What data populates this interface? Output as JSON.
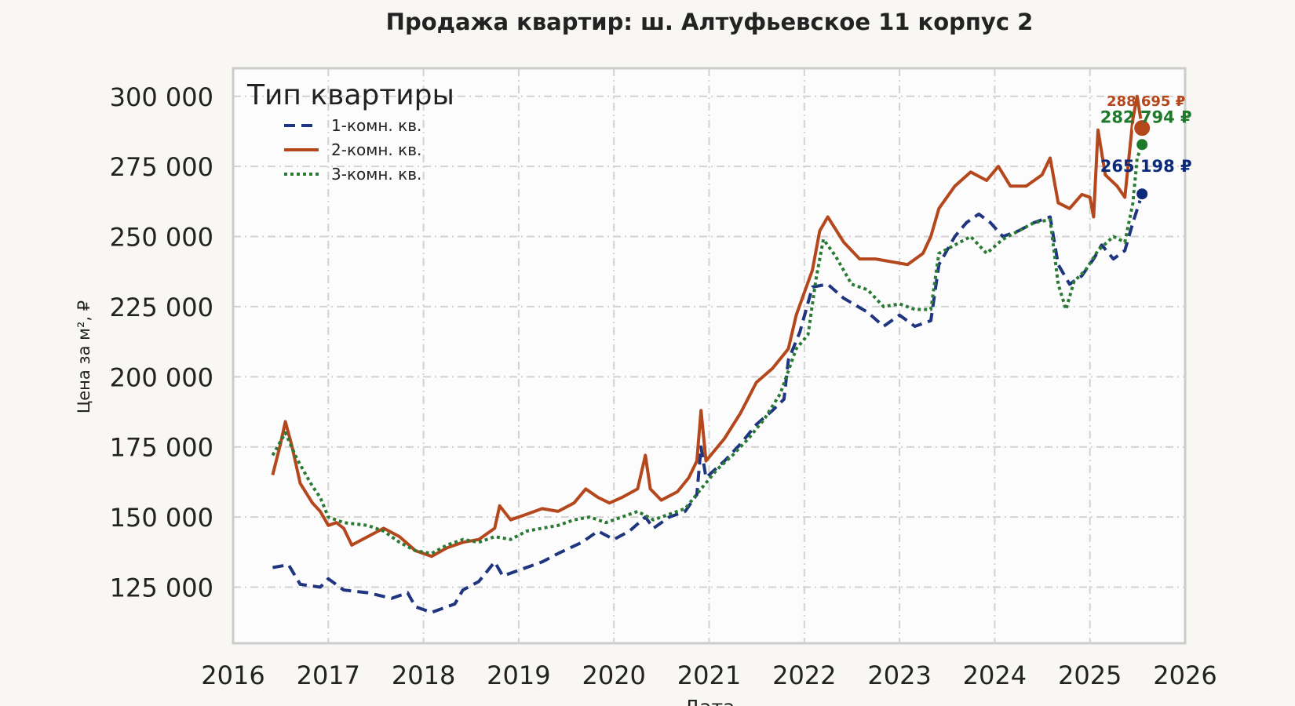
{
  "chart_data": {
    "type": "line",
    "title": "Продажа квартир: ш. Алтуфьевское 11 корпус 2",
    "xlabel": "Дата",
    "ylabel": "Цена за м², ₽",
    "xlim": [
      "2016-01-01",
      "2026-01-01"
    ],
    "ylim": [
      105000,
      310000
    ],
    "x_ticks": [
      "2016",
      "2017",
      "2018",
      "2019",
      "2020",
      "2021",
      "2022",
      "2023",
      "2024",
      "2025",
      "2026"
    ],
    "y_ticks": [
      {
        "value": 125000,
        "label": "125 000"
      },
      {
        "value": 150000,
        "label": "150 000"
      },
      {
        "value": 175000,
        "label": "175 000"
      },
      {
        "value": 200000,
        "label": "200 000"
      },
      {
        "value": 225000,
        "label": "225 000"
      },
      {
        "value": 250000,
        "label": "250 000"
      },
      {
        "value": 275000,
        "label": "275 000"
      },
      {
        "value": 300000,
        "label": "300 000"
      }
    ],
    "grid": true,
    "legend": {
      "title": "Тип квартиры",
      "position": "top-left"
    },
    "series": [
      {
        "name": "1-комн. кв.",
        "color": "#1f3580",
        "dot_color": "#0b2a7a",
        "style": "dashed",
        "last_label": "265 198 ₽",
        "points": [
          [
            "2016-06-01",
            132000
          ],
          [
            "2016-08-01",
            133000
          ],
          [
            "2016-09-15",
            126000
          ],
          [
            "2016-12-01",
            125000
          ],
          [
            "2017-01-01",
            128000
          ],
          [
            "2017-03-01",
            124000
          ],
          [
            "2017-06-01",
            123000
          ],
          [
            "2017-09-01",
            121000
          ],
          [
            "2017-11-01",
            123000
          ],
          [
            "2017-12-01",
            118000
          ],
          [
            "2018-01-01",
            117000
          ],
          [
            "2018-02-01",
            116000
          ],
          [
            "2018-05-01",
            119000
          ],
          [
            "2018-06-01",
            124000
          ],
          [
            "2018-08-01",
            127000
          ],
          [
            "2018-10-01",
            134000
          ],
          [
            "2018-11-01",
            129000
          ],
          [
            "2019-01-01",
            131000
          ],
          [
            "2019-04-01",
            134000
          ],
          [
            "2019-06-01",
            137000
          ],
          [
            "2019-09-01",
            141000
          ],
          [
            "2019-11-01",
            145000
          ],
          [
            "2020-01-01",
            142000
          ],
          [
            "2020-03-01",
            145000
          ],
          [
            "2020-05-01",
            150000
          ],
          [
            "2020-06-01",
            146000
          ],
          [
            "2020-08-01",
            150000
          ],
          [
            "2020-10-01",
            152000
          ],
          [
            "2020-11-15",
            158000
          ],
          [
            "2020-12-01",
            175000
          ],
          [
            "2020-12-20",
            164000
          ],
          [
            "2021-03-01",
            170000
          ],
          [
            "2021-05-01",
            176000
          ],
          [
            "2021-07-01",
            183000
          ],
          [
            "2021-09-01",
            188000
          ],
          [
            "2021-10-15",
            192000
          ],
          [
            "2021-11-01",
            206000
          ],
          [
            "2021-12-15",
            216000
          ],
          [
            "2022-02-01",
            232000
          ],
          [
            "2022-04-01",
            233000
          ],
          [
            "2022-06-01",
            228000
          ],
          [
            "2022-09-01",
            223000
          ],
          [
            "2022-11-01",
            218000
          ],
          [
            "2023-01-01",
            222000
          ],
          [
            "2023-03-01",
            218000
          ],
          [
            "2023-05-01",
            220000
          ],
          [
            "2023-06-01",
            240000
          ],
          [
            "2023-08-01",
            250000
          ],
          [
            "2023-09-15",
            255000
          ],
          [
            "2023-11-01",
            258000
          ],
          [
            "2023-12-15",
            255000
          ],
          [
            "2024-02-01",
            250000
          ],
          [
            "2024-04-01",
            252000
          ],
          [
            "2024-06-01",
            255000
          ],
          [
            "2024-08-01",
            257000
          ],
          [
            "2024-09-01",
            240000
          ],
          [
            "2024-10-15",
            233000
          ],
          [
            "2024-12-01",
            236000
          ],
          [
            "2025-01-15",
            242000
          ],
          [
            "2025-02-15",
            247000
          ],
          [
            "2025-04-01",
            242000
          ],
          [
            "2025-05-15",
            245000
          ],
          [
            "2025-06-15",
            255000
          ],
          [
            "2025-07-20",
            265198
          ]
        ]
      },
      {
        "name": "2-комн. кв.",
        "color": "#b5471d",
        "dot_color": "#b5471d",
        "style": "solid",
        "last_label": "288 695 ₽",
        "points": [
          [
            "2016-06-01",
            165000
          ],
          [
            "2016-07-01",
            176000
          ],
          [
            "2016-07-20",
            184000
          ],
          [
            "2016-08-15",
            175000
          ],
          [
            "2016-09-15",
            162000
          ],
          [
            "2016-11-01",
            155000
          ],
          [
            "2016-12-01",
            152000
          ],
          [
            "2017-01-01",
            147000
          ],
          [
            "2017-02-01",
            148000
          ],
          [
            "2017-03-01",
            146000
          ],
          [
            "2017-04-01",
            140000
          ],
          [
            "2017-06-01",
            143000
          ],
          [
            "2017-08-01",
            146000
          ],
          [
            "2017-10-01",
            143000
          ],
          [
            "2017-12-01",
            138000
          ],
          [
            "2018-02-01",
            136000
          ],
          [
            "2018-04-01",
            139000
          ],
          [
            "2018-06-01",
            141000
          ],
          [
            "2018-08-01",
            142000
          ],
          [
            "2018-10-01",
            146000
          ],
          [
            "2018-10-20",
            154000
          ],
          [
            "2018-12-01",
            149000
          ],
          [
            "2019-02-01",
            151000
          ],
          [
            "2019-04-01",
            153000
          ],
          [
            "2019-06-01",
            152000
          ],
          [
            "2019-08-01",
            155000
          ],
          [
            "2019-09-15",
            160000
          ],
          [
            "2019-11-01",
            157000
          ],
          [
            "2019-12-15",
            155000
          ],
          [
            "2020-02-01",
            157000
          ],
          [
            "2020-04-01",
            160000
          ],
          [
            "2020-05-01",
            172000
          ],
          [
            "2020-05-20",
            160000
          ],
          [
            "2020-07-01",
            156000
          ],
          [
            "2020-09-01",
            159000
          ],
          [
            "2020-10-15",
            164000
          ],
          [
            "2020-11-15",
            170000
          ],
          [
            "2020-12-01",
            188000
          ],
          [
            "2020-12-20",
            170000
          ],
          [
            "2021-03-01",
            178000
          ],
          [
            "2021-05-01",
            187000
          ],
          [
            "2021-07-01",
            198000
          ],
          [
            "2021-09-01",
            203000
          ],
          [
            "2021-11-01",
            210000
          ],
          [
            "2021-12-01",
            222000
          ],
          [
            "2022-01-01",
            230000
          ],
          [
            "2022-02-01",
            238000
          ],
          [
            "2022-03-01",
            252000
          ],
          [
            "2022-04-01",
            257000
          ],
          [
            "2022-06-01",
            248000
          ],
          [
            "2022-08-01",
            242000
          ],
          [
            "2022-10-01",
            242000
          ],
          [
            "2022-12-01",
            241000
          ],
          [
            "2023-02-01",
            240000
          ],
          [
            "2023-04-01",
            244000
          ],
          [
            "2023-05-01",
            250000
          ],
          [
            "2023-06-01",
            260000
          ],
          [
            "2023-08-01",
            268000
          ],
          [
            "2023-10-01",
            273000
          ],
          [
            "2023-12-01",
            270000
          ],
          [
            "2024-01-15",
            275000
          ],
          [
            "2024-03-01",
            268000
          ],
          [
            "2024-05-01",
            268000
          ],
          [
            "2024-07-01",
            272000
          ],
          [
            "2024-08-01",
            278000
          ],
          [
            "2024-09-01",
            262000
          ],
          [
            "2024-10-15",
            260000
          ],
          [
            "2024-12-01",
            265000
          ],
          [
            "2025-01-01",
            264000
          ],
          [
            "2025-01-15",
            257000
          ],
          [
            "2025-02-01",
            288000
          ],
          [
            "2025-03-01",
            272000
          ],
          [
            "2025-04-15",
            268000
          ],
          [
            "2025-05-15",
            264000
          ],
          [
            "2025-06-15",
            292000
          ],
          [
            "2025-07-01",
            300000
          ],
          [
            "2025-07-20",
            288695
          ]
        ]
      },
      {
        "name": "3-комн. кв.",
        "color": "#2a7a35",
        "dot_color": "#1e7a2a",
        "style": "dotted",
        "last_label": "282 794 ₽",
        "points": [
          [
            "2016-06-01",
            172000
          ],
          [
            "2016-07-20",
            180000
          ],
          [
            "2016-09-01",
            171000
          ],
          [
            "2016-10-01",
            166000
          ],
          [
            "2016-11-01",
            161000
          ],
          [
            "2016-12-01",
            157000
          ],
          [
            "2017-01-01",
            150000
          ],
          [
            "2017-03-01",
            148000
          ],
          [
            "2017-06-01",
            147000
          ],
          [
            "2017-08-01",
            145000
          ],
          [
            "2017-10-01",
            141000
          ],
          [
            "2017-12-01",
            138000
          ],
          [
            "2018-02-01",
            137000
          ],
          [
            "2018-04-01",
            140000
          ],
          [
            "2018-06-01",
            142000
          ],
          [
            "2018-08-01",
            141000
          ],
          [
            "2018-10-01",
            143000
          ],
          [
            "2018-12-01",
            142000
          ],
          [
            "2019-02-01",
            145000
          ],
          [
            "2019-04-01",
            146000
          ],
          [
            "2019-06-01",
            147000
          ],
          [
            "2019-08-01",
            149000
          ],
          [
            "2019-10-01",
            150000
          ],
          [
            "2019-12-01",
            148000
          ],
          [
            "2020-02-01",
            150000
          ],
          [
            "2020-04-01",
            152000
          ],
          [
            "2020-06-01",
            149000
          ],
          [
            "2020-08-01",
            151000
          ],
          [
            "2020-10-01",
            153000
          ],
          [
            "2020-12-01",
            160000
          ],
          [
            "2021-02-01",
            167000
          ],
          [
            "2021-04-01",
            172000
          ],
          [
            "2021-06-01",
            178000
          ],
          [
            "2021-08-01",
            185000
          ],
          [
            "2021-10-01",
            194000
          ],
          [
            "2021-12-01",
            210000
          ],
          [
            "2022-01-15",
            215000
          ],
          [
            "2022-02-15",
            235000
          ],
          [
            "2022-03-15",
            249000
          ],
          [
            "2022-05-01",
            243000
          ],
          [
            "2022-07-01",
            233000
          ],
          [
            "2022-09-01",
            231000
          ],
          [
            "2022-11-01",
            225000
          ],
          [
            "2023-01-01",
            226000
          ],
          [
            "2023-03-01",
            224000
          ],
          [
            "2023-05-01",
            224000
          ],
          [
            "2023-06-01",
            244000
          ],
          [
            "2023-08-01",
            247000
          ],
          [
            "2023-10-01",
            250000
          ],
          [
            "2023-12-01",
            244000
          ],
          [
            "2024-02-01",
            249000
          ],
          [
            "2024-04-01",
            252000
          ],
          [
            "2024-06-01",
            255000
          ],
          [
            "2024-08-01",
            256000
          ],
          [
            "2024-09-01",
            233000
          ],
          [
            "2024-10-01",
            224000
          ],
          [
            "2024-11-01",
            234000
          ],
          [
            "2024-12-15",
            238000
          ],
          [
            "2025-02-01",
            245000
          ],
          [
            "2025-04-01",
            250000
          ],
          [
            "2025-05-15",
            248000
          ],
          [
            "2025-06-15",
            262000
          ],
          [
            "2025-07-01",
            278000
          ],
          [
            "2025-07-20",
            282794
          ]
        ]
      }
    ]
  }
}
